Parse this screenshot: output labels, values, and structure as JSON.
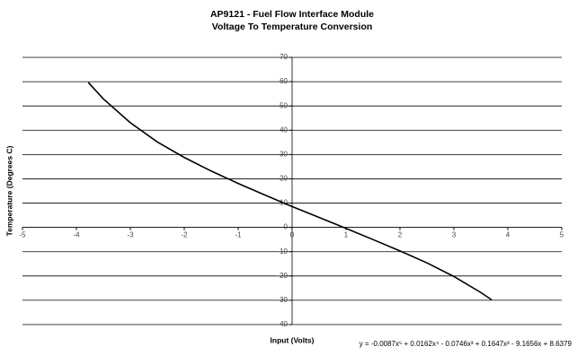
{
  "chart_data": {
    "type": "line",
    "title": [
      "AP9121 - Fuel Flow Interface Module",
      "Voltage To Temperature Conversion"
    ],
    "x_label": "Input (Volts)",
    "y_label": "Temperature (Degrees C)",
    "annotation": "y = -0.0087x⁵ + 0.0162x⁴ - 0.0746x³ + 0.1647x² - 9.1656x + 8.6379",
    "x": [
      -3.78,
      -3.5,
      -3,
      -2.5,
      -2,
      -1.5,
      -1,
      -0.5,
      0,
      0.5,
      1,
      1.5,
      2,
      2.5,
      3,
      3.5,
      3.7
    ],
    "series": [
      {
        "name": "Temperature",
        "color": "#000000",
        "values": [
          59.7,
          52.9,
          43.1,
          35.2,
          28.8,
          23.2,
          18.1,
          13.3,
          8.6,
          4.1,
          -0.4,
          -5.0,
          -9.7,
          -14.6,
          -20.2,
          -26.8,
          -29.8
        ]
      }
    ],
    "xlim": [
      -5,
      5
    ],
    "xticks": [
      -5,
      -4,
      -3,
      -2,
      -1,
      0,
      1,
      2,
      3,
      4,
      5
    ],
    "ylim": [
      -40,
      70
    ],
    "yticks": [
      -40,
      -30,
      -20,
      -10,
      0,
      10,
      20,
      30,
      40,
      50,
      60,
      70
    ],
    "grid": true
  }
}
